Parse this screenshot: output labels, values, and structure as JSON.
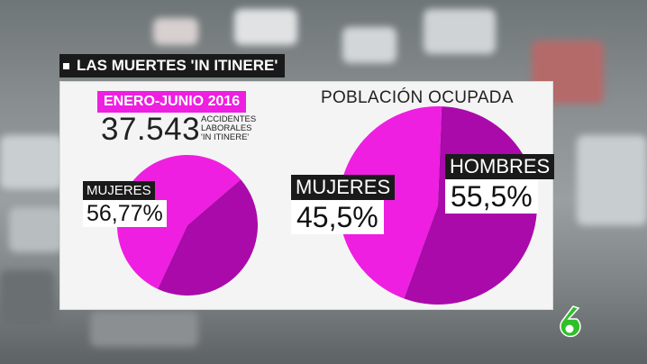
{
  "header": {
    "title": "LAS MUERTES 'IN ITINERE'"
  },
  "left": {
    "period": "ENERO-JUNIO 2016",
    "total": "37.543",
    "total_label_lines": [
      "ACCIDENTES",
      "LABORALES",
      "'IN ITINERE'"
    ],
    "slice_label": "MUJERES",
    "slice_value": "56,77%"
  },
  "right": {
    "title": "POBLACIÓN OCUPADA",
    "women_label": "MUJERES",
    "women_value": "45,5%",
    "men_label": "HOMBRES",
    "men_value": "55,5%"
  },
  "colors": {
    "women": "#ee1fe0",
    "men": "#aa0aaa",
    "tag_bg": "#1a1a1a",
    "logo": "#2fbf2a"
  },
  "chart_data": [
    {
      "type": "pie",
      "title": "ENERO-JUNIO 2016",
      "categories": [
        "MUJERES",
        ""
      ],
      "values": [
        56.77,
        43.23
      ],
      "labels_shown": [
        "56,77%"
      ]
    },
    {
      "type": "pie",
      "title": "POBLACIÓN OCUPADA",
      "categories": [
        "MUJERES",
        "HOMBRES"
      ],
      "values": [
        45.5,
        55.5
      ],
      "labels_shown": [
        "45,5%",
        "55,5%"
      ]
    }
  ]
}
